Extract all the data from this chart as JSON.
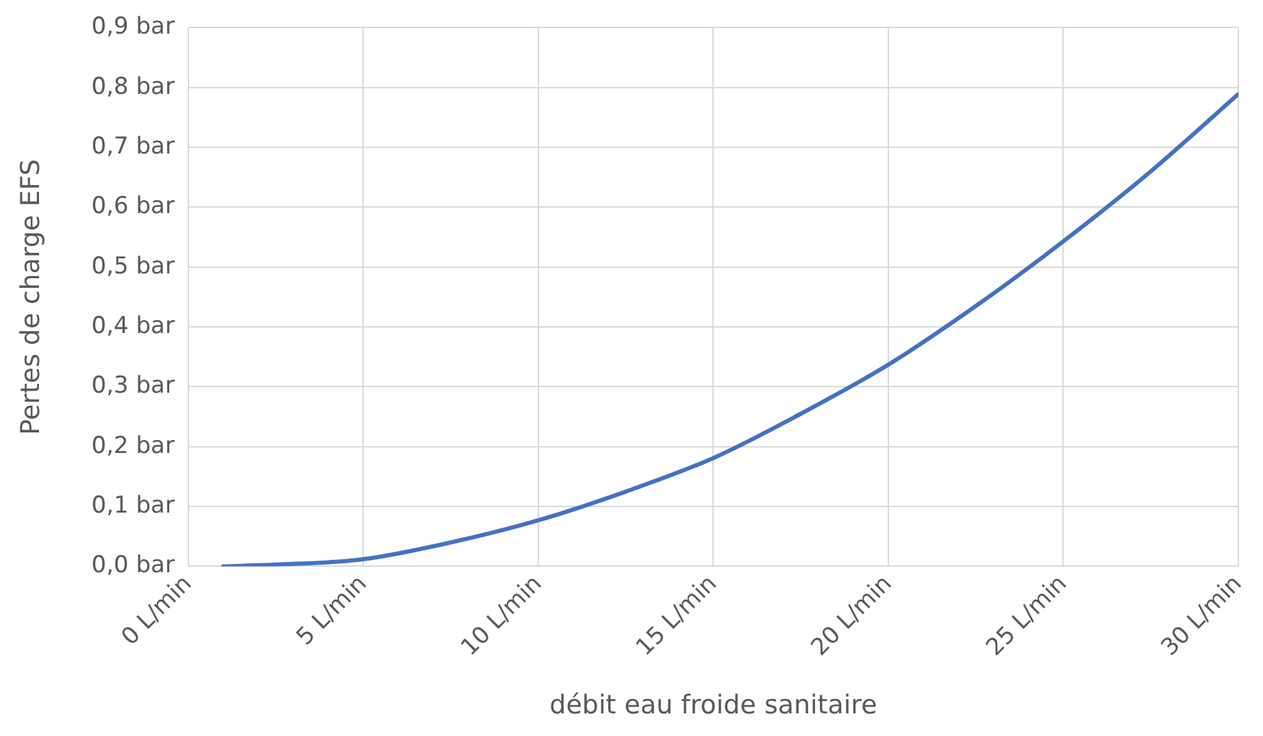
{
  "chart_data": {
    "type": "line",
    "xlabel": "débit eau froide sanitaire",
    "ylabel": "Pertes de charge EFS",
    "x": [
      1,
      2.5,
      5,
      7.5,
      10,
      12.5,
      15,
      17.5,
      20,
      22.5,
      25,
      27.5,
      30
    ],
    "series": [
      {
        "color": "#4472c4",
        "values": [
          0,
          0.003,
          0.012,
          0.04,
          0.077,
          0.125,
          0.181,
          0.255,
          0.337,
          0.435,
          0.543,
          0.66,
          0.789
        ]
      }
    ],
    "xlim": [
      0,
      30
    ],
    "xticks": [
      {
        "value": 0,
        "label": "0 L/min"
      },
      {
        "value": 5,
        "label": "5 L/min"
      },
      {
        "value": 10,
        "label": "10 L/min"
      },
      {
        "value": 15,
        "label": "15 L/min"
      },
      {
        "value": 20,
        "label": "20 L/min"
      },
      {
        "value": 25,
        "label": "25 L/min"
      },
      {
        "value": 30,
        "label": "30 L/min"
      }
    ],
    "ylim": [
      0,
      0.9
    ],
    "yticks": [
      {
        "value": 0,
        "label": "0,0 bar"
      },
      {
        "value": 0.1,
        "label": "0,1 bar"
      },
      {
        "value": 0.2,
        "label": "0,2 bar"
      },
      {
        "value": 0.3,
        "label": "0,3 bar"
      },
      {
        "value": 0.4,
        "label": "0,4 bar"
      },
      {
        "value": 0.5,
        "label": "0,5 bar"
      },
      {
        "value": 0.6,
        "label": "0,6 bar"
      },
      {
        "value": 0.7,
        "label": "0,7 bar"
      },
      {
        "value": 0.8,
        "label": "0,8 bar"
      },
      {
        "value": 0.9,
        "label": "0,9 bar"
      }
    ],
    "grid": true,
    "marker": "none",
    "line_style": "solid"
  }
}
